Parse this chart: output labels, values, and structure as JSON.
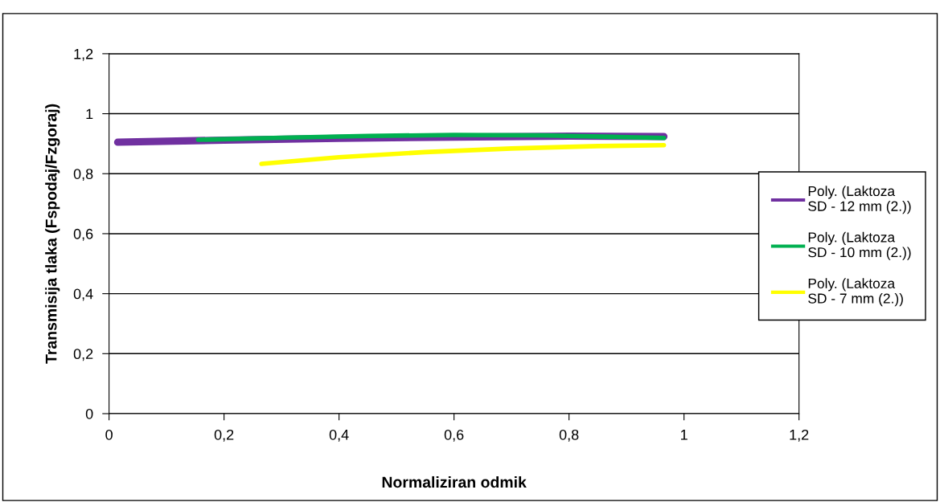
{
  "chart_data": {
    "type": "line",
    "xlabel": "Normaliziran odmik",
    "ylabel": "Transmisija tlaka (Fspodaj/Fzgoraj)",
    "xlim": [
      0,
      1.2
    ],
    "ylim": [
      0,
      1.2
    ],
    "xticks": [
      {
        "value": 0,
        "label": "0"
      },
      {
        "value": 0.2,
        "label": "0,2"
      },
      {
        "value": 0.4,
        "label": "0,4"
      },
      {
        "value": 0.6,
        "label": "0,6"
      },
      {
        "value": 0.8,
        "label": "0,8"
      },
      {
        "value": 1,
        "label": "1"
      },
      {
        "value": 1.2,
        "label": "1,2"
      }
    ],
    "yticks": [
      {
        "value": 0,
        "label": "0"
      },
      {
        "value": 0.2,
        "label": "0,2"
      },
      {
        "value": 0.4,
        "label": "0,4"
      },
      {
        "value": 0.6,
        "label": "0,6"
      },
      {
        "value": 0.8,
        "label": "0,8"
      },
      {
        "value": 1,
        "label": "1"
      },
      {
        "value": 1.2,
        "label": "1,2"
      }
    ],
    "grid": "y",
    "legend": "right",
    "marker": "none",
    "line_style": "solid",
    "series": [
      {
        "name": "Poly. (Laktoza SD - 12 mm (2.))",
        "color": "#7030a0",
        "x": [
          0.015,
          0.2,
          0.4,
          0.6,
          0.8,
          0.965
        ],
        "values": [
          0.905,
          0.912,
          0.918,
          0.922,
          0.925,
          0.924
        ]
      },
      {
        "name": "Poly. (Laktoza SD - 10 mm (2.))",
        "color": "#00b050",
        "x": [
          0.155,
          0.3,
          0.45,
          0.6,
          0.75,
          0.9,
          0.965
        ],
        "values": [
          0.913,
          0.92,
          0.926,
          0.929,
          0.928,
          0.922,
          0.919
        ]
      },
      {
        "name": "Poly. (Laktoza SD - 7 mm (2.))",
        "color": "#ffff00",
        "x": [
          0.265,
          0.4,
          0.55,
          0.7,
          0.85,
          0.965
        ],
        "values": [
          0.833,
          0.855,
          0.872,
          0.884,
          0.892,
          0.895
        ]
      }
    ]
  }
}
